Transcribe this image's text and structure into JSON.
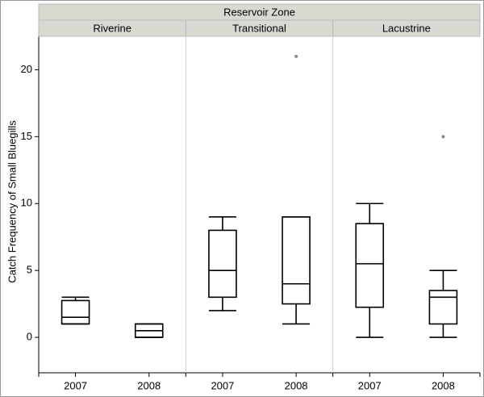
{
  "chart_data": {
    "type": "box",
    "strip_title": "Reservoir Zone",
    "ylabel": "Catch Frequency of Small Bluegills",
    "ylim": [
      -2.65,
      22.5
    ],
    "yticks": [
      0,
      5,
      10,
      15,
      20
    ],
    "color": "#000000",
    "outlier_color": "#888888",
    "strip_color": "#d9d9d2",
    "facets": [
      {
        "name": "Riverine",
        "categories": [
          "2007",
          "2008"
        ],
        "boxes": [
          {
            "min": 1,
            "q1": 1,
            "median": 1.5,
            "q3": 2.75,
            "max": 3,
            "outliers": []
          },
          {
            "min": 0,
            "q1": 0,
            "median": 0.5,
            "q3": 1,
            "max": 1,
            "outliers": []
          }
        ]
      },
      {
        "name": "Transitional",
        "categories": [
          "2007",
          "2008"
        ],
        "boxes": [
          {
            "min": 2,
            "q1": 3,
            "median": 5,
            "q3": 8,
            "max": 9,
            "outliers": []
          },
          {
            "min": 1,
            "q1": 2.5,
            "median": 4,
            "q3": 9,
            "max": 9,
            "outliers": [
              21
            ]
          }
        ]
      },
      {
        "name": "Lacustrine",
        "categories": [
          "2007",
          "2008"
        ],
        "boxes": [
          {
            "min": 0,
            "q1": 2.25,
            "median": 5.5,
            "q3": 8.5,
            "max": 10,
            "outliers": []
          },
          {
            "min": 0,
            "q1": 1,
            "median": 3,
            "q3": 3.5,
            "max": 5,
            "outliers": [
              15
            ]
          }
        ]
      }
    ]
  }
}
